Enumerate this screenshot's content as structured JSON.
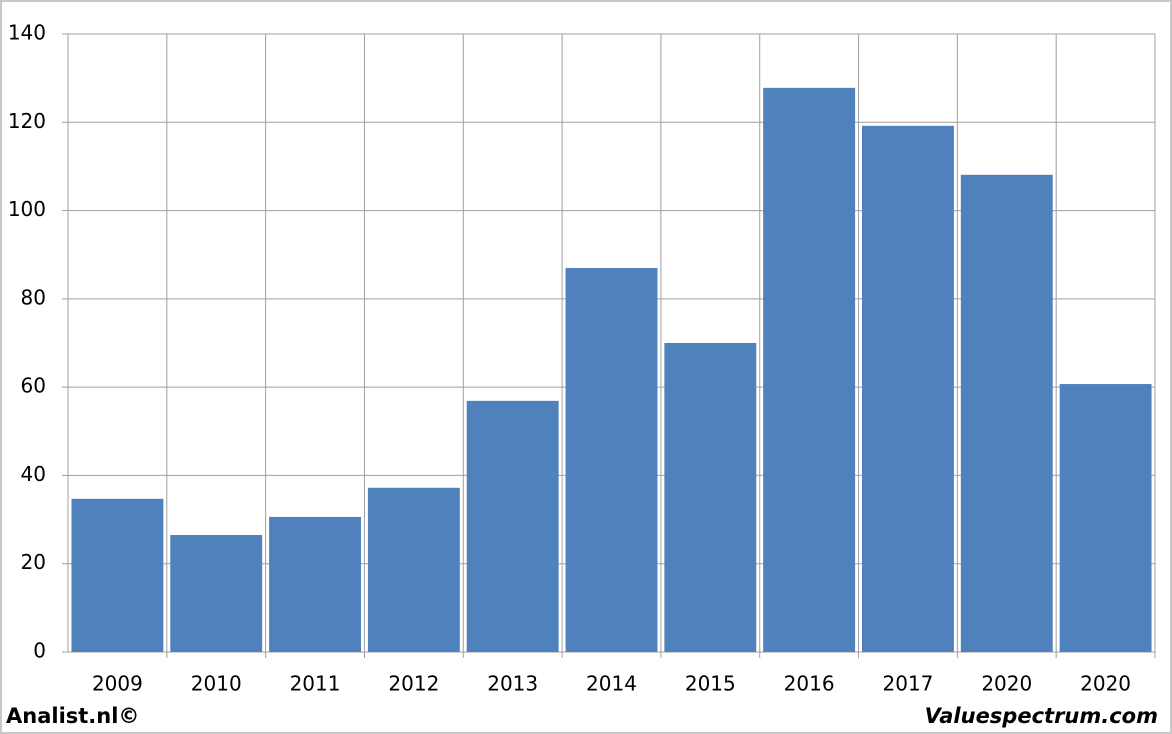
{
  "chart_data": {
    "type": "bar",
    "categories": [
      "2009",
      "2010",
      "2011",
      "2012",
      "2013",
      "2014",
      "2015",
      "2016",
      "2017",
      "2020",
      "2020"
    ],
    "values": [
      34.7,
      26.5,
      30.6,
      37.2,
      56.9,
      87.0,
      70.0,
      127.8,
      119.2,
      108.1,
      60.7
    ],
    "color": "#4f81bd",
    "ylim": [
      0,
      140
    ],
    "yticks": [
      0,
      20,
      40,
      60,
      80,
      100,
      120,
      140
    ],
    "grid": true,
    "annotations": [
      "Analist.nl©",
      "Valuespectrum.com"
    ]
  }
}
